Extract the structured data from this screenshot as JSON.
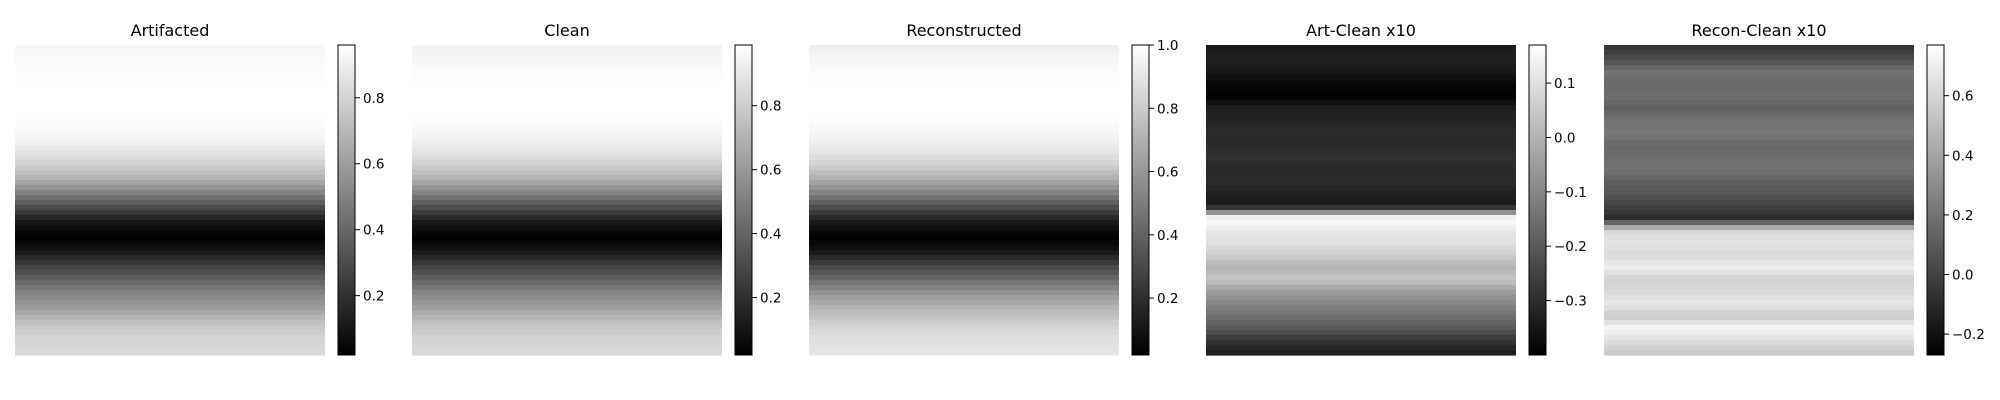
{
  "chart_data": [
    {
      "type": "heatmap",
      "title": "Artifacted",
      "xlabel": "",
      "ylabel": "",
      "colormap": "gray",
      "colorbar": {
        "range": [
          0.02,
          0.96
        ],
        "ticks": [
          0.2,
          0.4,
          0.6,
          0.8
        ],
        "tick_labels": [
          "0.2",
          "0.4",
          "0.6",
          "0.8"
        ]
      },
      "row_profile_top_to_bottom": [
        0.93,
        0.94,
        0.95,
        0.96,
        0.96,
        0.95,
        0.93,
        0.88,
        0.8,
        0.68,
        0.5,
        0.3,
        0.1,
        0.02,
        0.1,
        0.25,
        0.38,
        0.52,
        0.6,
        0.74,
        0.8,
        0.82
      ]
    },
    {
      "type": "heatmap",
      "title": "Clean",
      "xlabel": "",
      "ylabel": "",
      "colormap": "gray",
      "colorbar": {
        "range": [
          0.02,
          0.99
        ],
        "ticks": [
          0.2,
          0.4,
          0.6,
          0.8
        ],
        "tick_labels": [
          "0.2",
          "0.4",
          "0.6",
          "0.8"
        ]
      },
      "row_profile_top_to_bottom": [
        0.94,
        0.96,
        0.98,
        0.99,
        0.99,
        0.98,
        0.95,
        0.9,
        0.82,
        0.7,
        0.52,
        0.32,
        0.12,
        0.02,
        0.1,
        0.26,
        0.4,
        0.54,
        0.64,
        0.76,
        0.82,
        0.84
      ]
    },
    {
      "type": "heatmap",
      "title": "Reconstructed",
      "xlabel": "",
      "ylabel": "",
      "colormap": "gray",
      "colorbar": {
        "range": [
          0.02,
          1.0
        ],
        "ticks": [
          0.2,
          0.4,
          0.6,
          0.8,
          1.0
        ],
        "tick_labels": [
          "0.2",
          "0.4",
          "0.6",
          "0.8",
          "1.0"
        ]
      },
      "row_profile_top_to_bottom": [
        0.94,
        0.97,
        0.99,
        1.0,
        1.0,
        0.99,
        0.96,
        0.91,
        0.83,
        0.7,
        0.52,
        0.32,
        0.12,
        0.02,
        0.1,
        0.28,
        0.44,
        0.6,
        0.72,
        0.82,
        0.88,
        0.9
      ]
    },
    {
      "type": "heatmap",
      "title": "Art-Clean x10",
      "xlabel": "",
      "ylabel": "",
      "colormap": "gray",
      "colorbar": {
        "range": [
          -0.4,
          0.17
        ],
        "ticks": [
          -0.3,
          -0.2,
          -0.1,
          0.0,
          0.1
        ],
        "tick_labels": [
          "−0.3",
          "−0.2",
          "−0.1",
          "0.0",
          "0.1"
        ]
      },
      "row_profile_top_to_bottom": [
        -0.34,
        -0.33,
        -0.35,
        -0.38,
        -0.4,
        -0.33,
        -0.32,
        -0.3,
        -0.31,
        -0.29,
        -0.31,
        -0.3,
        -0.33,
        -0.34,
        0.17,
        0.12,
        0.1,
        0.06,
        0.0,
        0.04,
        -0.05,
        -0.1,
        -0.15,
        -0.2,
        -0.28,
        -0.33
      ]
    },
    {
      "type": "heatmap",
      "title": "Recon-Clean x10",
      "xlabel": "",
      "ylabel": "",
      "colormap": "gray",
      "colorbar": {
        "range": [
          -0.27,
          0.77
        ],
        "ticks": [
          -0.2,
          0.0,
          0.2,
          0.4,
          0.6
        ],
        "tick_labels": [
          "−0.2",
          "0.0",
          "0.2",
          "0.4",
          "0.6"
        ]
      },
      "row_profile_top_to_bottom": [
        -0.05,
        0.05,
        0.2,
        0.15,
        0.18,
        0.12,
        0.2,
        0.22,
        0.15,
        0.18,
        0.2,
        0.12,
        0.08,
        0.0,
        -0.1,
        0.6,
        0.66,
        0.62,
        0.7,
        0.58,
        0.62,
        0.68,
        0.55,
        0.74,
        0.64,
        0.55
      ]
    }
  ]
}
